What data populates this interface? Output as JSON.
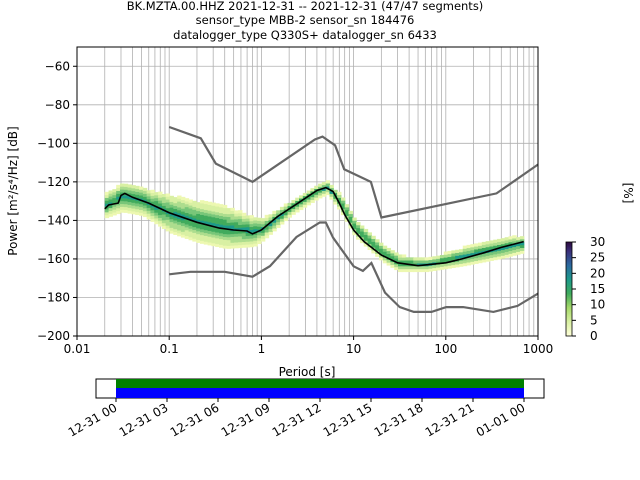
{
  "title": {
    "line1": "BK.MZTA.00.HHZ   2021-12-31 -- 2021-12-31  (47/47 segments)",
    "line2": "sensor_type MBB-2 sensor_sn 184476",
    "line3": "datalogger_type Q330S+ datalogger_sn 6433"
  },
  "colors": {
    "model_curve": "#666666",
    "mean_curve": "#000000",
    "grid": "#b0b0b0",
    "coverage_top": "#008000",
    "coverage_bottom": "#0000ff"
  },
  "chart_data": {
    "type": "heatmap",
    "xlabel": "Period [s]",
    "ylabel": "Power [m²/s⁴/Hz] [dB]",
    "xscale": "log",
    "xlim": [
      0.01,
      1000
    ],
    "ylim": [
      -200,
      -50
    ],
    "x_ticks": [
      {
        "value": 0.01,
        "label": "0.01"
      },
      {
        "value": 0.1,
        "label": "0.1"
      },
      {
        "value": 1,
        "label": "1"
      },
      {
        "value": 10,
        "label": "10"
      },
      {
        "value": 100,
        "label": "100"
      },
      {
        "value": 1000,
        "label": "1000"
      }
    ],
    "y_ticks": [
      -60,
      -80,
      -100,
      -120,
      -140,
      -160,
      -180,
      -200
    ],
    "grid": true,
    "colorbar": {
      "label": "[%]",
      "min": 0,
      "max": 30,
      "ticks": [
        0,
        5,
        10,
        15,
        20,
        25,
        30
      ]
    },
    "high_noise_model": [
      [
        0.1,
        -91.5
      ],
      [
        0.22,
        -97.4
      ],
      [
        0.32,
        -110.5
      ],
      [
        0.8,
        -120
      ],
      [
        3.8,
        -98
      ],
      [
        4.6,
        -96.5
      ],
      [
        6.3,
        -101
      ],
      [
        7.9,
        -113.5
      ],
      [
        15.4,
        -120
      ],
      [
        20,
        -138.5
      ],
      [
        354.8,
        -126
      ],
      [
        1000,
        -111
      ]
    ],
    "low_noise_model": [
      [
        0.1,
        -168
      ],
      [
        0.17,
        -166.7
      ],
      [
        0.4,
        -166.7
      ],
      [
        0.8,
        -169.2
      ],
      [
        1.24,
        -163.7
      ],
      [
        2.4,
        -148.6
      ],
      [
        4.3,
        -141.1
      ],
      [
        5.0,
        -141.1
      ],
      [
        6.0,
        -149
      ],
      [
        10,
        -163.8
      ],
      [
        12.6,
        -166.2
      ],
      [
        15.6,
        -162.1
      ],
      [
        21.9,
        -177.5
      ],
      [
        31.6,
        -185
      ],
      [
        45,
        -187.5
      ],
      [
        70,
        -187.5
      ],
      [
        101,
        -185
      ],
      [
        154,
        -185
      ],
      [
        328,
        -187.5
      ],
      [
        600,
        -184.4
      ],
      [
        1000,
        -178
      ]
    ],
    "mean": [
      [
        0.02,
        -134
      ],
      [
        0.022,
        -132
      ],
      [
        0.028,
        -131
      ],
      [
        0.03,
        -127
      ],
      [
        0.033,
        -126
      ],
      [
        0.04,
        -128
      ],
      [
        0.06,
        -131
      ],
      [
        0.1,
        -136
      ],
      [
        0.2,
        -141
      ],
      [
        0.35,
        -144
      ],
      [
        0.5,
        -145
      ],
      [
        0.7,
        -145.5
      ],
      [
        0.8,
        -147
      ],
      [
        1.0,
        -145
      ],
      [
        1.5,
        -138
      ],
      [
        2.5,
        -131
      ],
      [
        4,
        -124.5
      ],
      [
        5,
        -123
      ],
      [
        6,
        -125
      ],
      [
        7,
        -131
      ],
      [
        8,
        -137
      ],
      [
        10,
        -145
      ],
      [
        13,
        -151
      ],
      [
        20,
        -158
      ],
      [
        30,
        -162
      ],
      [
        50,
        -163.5
      ],
      [
        100,
        -162
      ],
      [
        150,
        -160
      ],
      [
        250,
        -157
      ],
      [
        400,
        -154
      ],
      [
        700,
        -151
      ]
    ],
    "pdf_band": [
      [
        0.02,
        -138,
        -126
      ],
      [
        0.03,
        -135,
        -120
      ],
      [
        0.05,
        -137,
        -123
      ],
      [
        0.1,
        -146,
        -127
      ],
      [
        0.2,
        -151,
        -130
      ],
      [
        0.4,
        -154,
        -133
      ],
      [
        0.8,
        -153,
        -138
      ],
      [
        1.0,
        -150,
        -139
      ],
      [
        2.0,
        -137,
        -130
      ],
      [
        4.0,
        -128,
        -121
      ],
      [
        5.0,
        -126,
        -120
      ],
      [
        7.0,
        -135,
        -127
      ],
      [
        10,
        -148,
        -140
      ],
      [
        20,
        -161,
        -153
      ],
      [
        30,
        -166,
        -158
      ],
      [
        60,
        -166,
        -160
      ],
      [
        150,
        -163,
        -154
      ],
      [
        400,
        -159,
        -149
      ],
      [
        700,
        -156,
        -148
      ]
    ]
  },
  "time_axis": {
    "ticks": [
      "12-31 00",
      "12-31 03",
      "12-31 06",
      "12-31 09",
      "12-31 12",
      "12-31 15",
      "12-31 18",
      "12-31 21",
      "01-01 00"
    ],
    "coverage_fraction": 1.0
  }
}
